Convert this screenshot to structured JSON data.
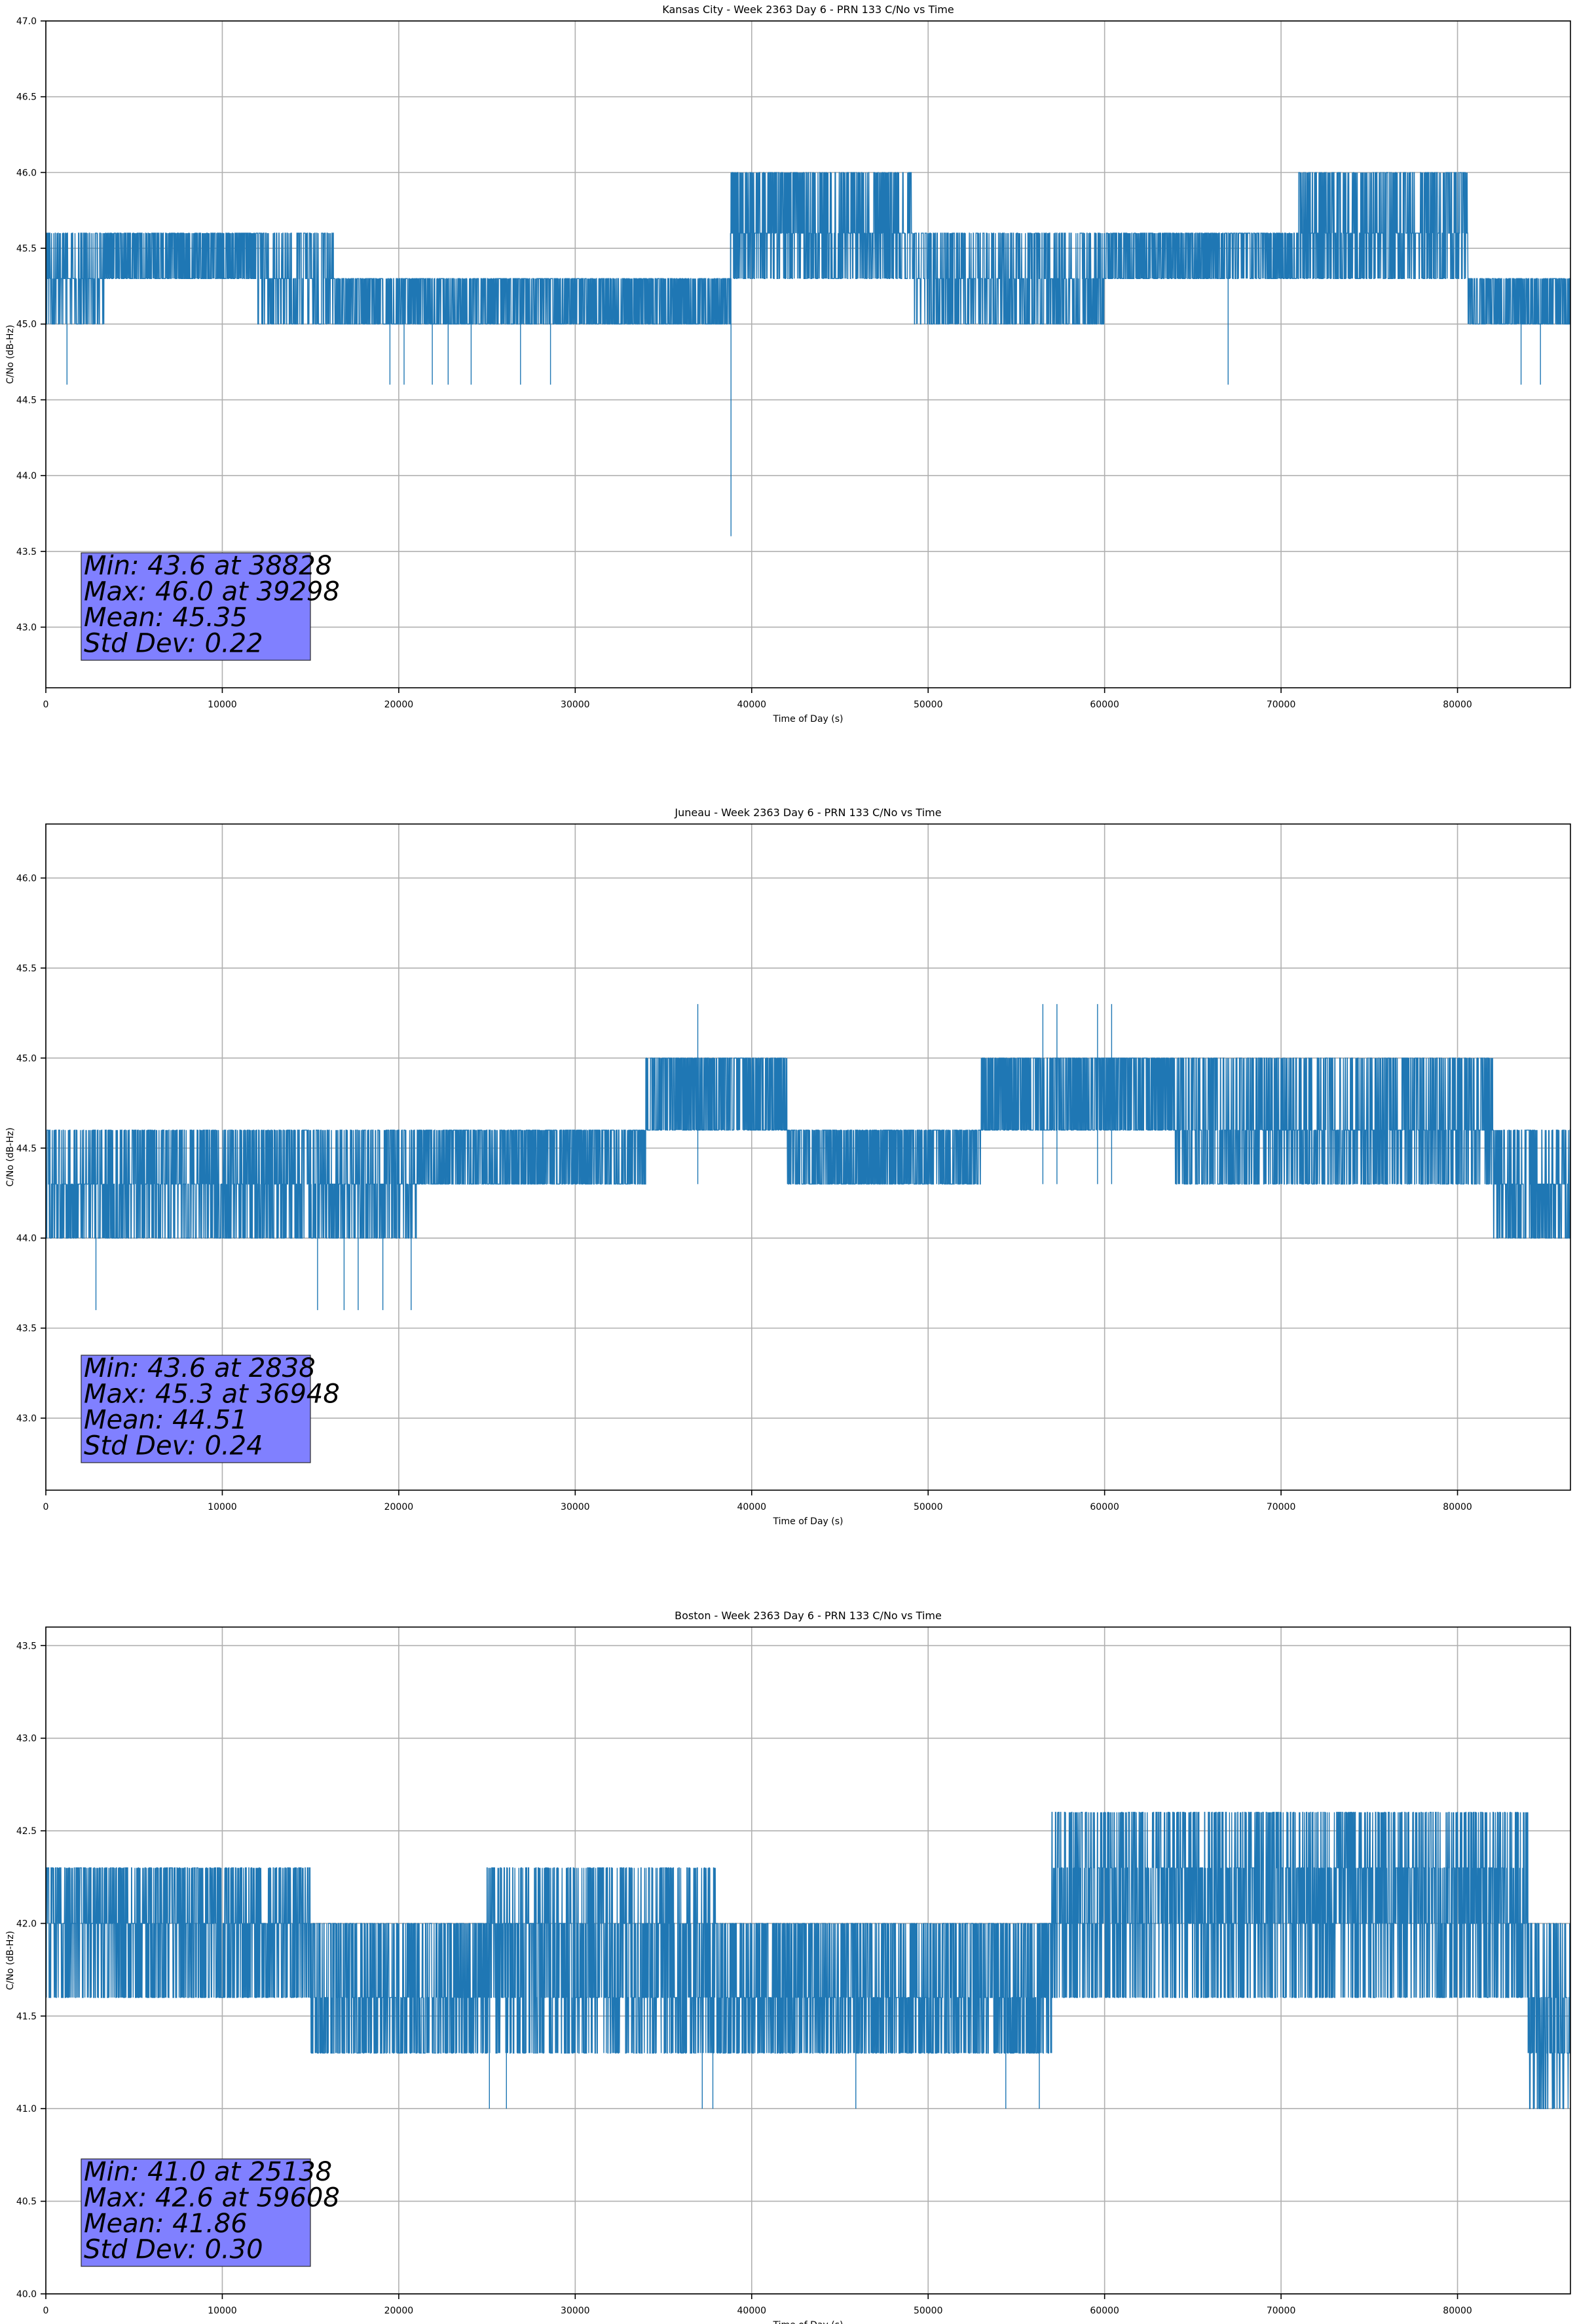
{
  "figure": {
    "panel_count": 3
  },
  "colors": {
    "line": "#1f77b4",
    "grid": "#b0b0b0",
    "stats_box": "#8080ff",
    "stats_box_edge": "#2a2a2a",
    "axes": "#000000"
  },
  "chart_data": [
    {
      "type": "line",
      "title": "Kansas City - Week 2363 Day 6 - PRN 133 C/No vs Time",
      "xlabel": "Time of Day (s)",
      "ylabel": "C/No (dB-Hz)",
      "xlim": [
        0,
        86400
      ],
      "ylim": [
        42.6,
        47.0
      ],
      "xticks": [
        0,
        10000,
        20000,
        30000,
        40000,
        50000,
        60000,
        70000,
        80000
      ],
      "yticks": [
        43.0,
        43.5,
        44.0,
        44.5,
        45.0,
        45.5,
        46.0,
        46.5,
        47.0
      ],
      "grid": true,
      "base_level": 45.3,
      "segments": [
        {
          "x": [
            0,
            3300
          ],
          "levels": [
            45.0,
            45.3,
            45.6
          ],
          "density": 0.7
        },
        {
          "x": [
            3300,
            12000
          ],
          "levels": [
            45.3,
            45.6
          ],
          "density": 0.9
        },
        {
          "x": [
            12000,
            16300
          ],
          "levels": [
            45.0,
            45.3,
            45.6
          ],
          "density": 0.6
        },
        {
          "x": [
            16300,
            38800
          ],
          "levels": [
            45.0,
            45.3
          ],
          "density": 0.9
        },
        {
          "x": [
            38800,
            49000
          ],
          "levels": [
            45.3,
            45.6,
            46.0
          ],
          "density": 0.9
        },
        {
          "x": [
            49000,
            60000
          ],
          "levels": [
            45.0,
            45.3,
            45.6
          ],
          "density": 0.7
        },
        {
          "x": [
            60000,
            71000
          ],
          "levels": [
            45.3,
            45.6
          ],
          "density": 0.9
        },
        {
          "x": [
            71000,
            80600
          ],
          "levels": [
            45.3,
            45.6,
            46.0
          ],
          "density": 0.8
        },
        {
          "x": [
            80600,
            86400
          ],
          "levels": [
            45.0,
            45.3
          ],
          "density": 0.9
        }
      ],
      "dips": [
        {
          "x": 1200,
          "y": 44.6
        },
        {
          "x": 19500,
          "y": 44.6
        },
        {
          "x": 20300,
          "y": 44.6
        },
        {
          "x": 21900,
          "y": 44.6
        },
        {
          "x": 22800,
          "y": 44.6
        },
        {
          "x": 24100,
          "y": 44.6
        },
        {
          "x": 26900,
          "y": 44.6
        },
        {
          "x": 28600,
          "y": 44.6
        },
        {
          "x": 38828,
          "y": 43.6
        },
        {
          "x": 67000,
          "y": 44.6
        },
        {
          "x": 83600,
          "y": 44.6
        },
        {
          "x": 84700,
          "y": 44.6
        }
      ],
      "stats": [
        "Min: 43.6 at 38828",
        "Max: 46.0 at 39298",
        "Mean: 45.35",
        "Std Dev: 0.22"
      ]
    },
    {
      "type": "line",
      "title": "Juneau - Week 2363 Day 6 - PRN 133 C/No vs Time",
      "xlabel": "Time of Day (s)",
      "ylabel": "C/No (dB-Hz)",
      "xlim": [
        0,
        86400
      ],
      "ylim": [
        42.6,
        46.3
      ],
      "xticks": [
        0,
        10000,
        20000,
        30000,
        40000,
        50000,
        60000,
        70000,
        80000
      ],
      "yticks": [
        43.0,
        43.5,
        44.0,
        44.5,
        45.0,
        45.5,
        46.0
      ],
      "grid": true,
      "base_level": 44.3,
      "segments": [
        {
          "x": [
            0,
            16500
          ],
          "levels": [
            44.0,
            44.3,
            44.6
          ],
          "density": 0.8
        },
        {
          "x": [
            16500,
            21000
          ],
          "levels": [
            44.0,
            44.3,
            44.6
          ],
          "density": 0.8
        },
        {
          "x": [
            21000,
            34000
          ],
          "levels": [
            44.3,
            44.6
          ],
          "density": 0.9
        },
        {
          "x": [
            34000,
            42000
          ],
          "levels": [
            44.6,
            45.0
          ],
          "density": 0.9
        },
        {
          "x": [
            42000,
            53000
          ],
          "levels": [
            44.3,
            44.6
          ],
          "density": 0.9
        },
        {
          "x": [
            53000,
            64000
          ],
          "levels": [
            44.6,
            45.0
          ],
          "density": 0.9
        },
        {
          "x": [
            64000,
            82000
          ],
          "levels": [
            44.3,
            44.6,
            45.0
          ],
          "density": 0.8
        },
        {
          "x": [
            82000,
            86400
          ],
          "levels": [
            44.0,
            44.3,
            44.6
          ],
          "density": 0.8
        }
      ],
      "dips": [
        {
          "x": 2838,
          "y": 43.6
        },
        {
          "x": 15400,
          "y": 43.6
        },
        {
          "x": 16900,
          "y": 43.6
        },
        {
          "x": 17700,
          "y": 43.6
        },
        {
          "x": 19100,
          "y": 43.6
        },
        {
          "x": 20700,
          "y": 43.6
        },
        {
          "x": 36948,
          "y": 45.3
        },
        {
          "x": 56500,
          "y": 45.3
        },
        {
          "x": 57300,
          "y": 45.3
        },
        {
          "x": 59600,
          "y": 45.3
        },
        {
          "x": 60400,
          "y": 45.3
        }
      ],
      "stats": [
        "Min: 43.6 at 2838",
        "Max: 45.3 at 36948",
        "Mean: 44.51",
        "Std Dev: 0.24"
      ]
    },
    {
      "type": "line",
      "title": "Boston - Week 2363 Day 6 - PRN 133 C/No vs Time",
      "xlabel": "Time of Day (s)",
      "ylabel": "C/No (dB-Hz)",
      "xlim": [
        0,
        86400
      ],
      "ylim": [
        40.0,
        43.6
      ],
      "xticks": [
        0,
        10000,
        20000,
        30000,
        40000,
        50000,
        60000,
        70000,
        80000
      ],
      "yticks": [
        40.0,
        40.5,
        41.0,
        41.5,
        42.0,
        42.5,
        43.0,
        43.5
      ],
      "grid": true,
      "base_level": 41.6,
      "segments": [
        {
          "x": [
            0,
            3800
          ],
          "levels": [
            41.6,
            42.0,
            42.3
          ],
          "density": 0.8
        },
        {
          "x": [
            3800,
            15000
          ],
          "levels": [
            41.6,
            42.0,
            42.3
          ],
          "density": 0.9
        },
        {
          "x": [
            15000,
            25000
          ],
          "levels": [
            41.3,
            41.6,
            42.0
          ],
          "density": 0.8
        },
        {
          "x": [
            25000,
            38000
          ],
          "levels": [
            41.3,
            41.6,
            42.0,
            42.3
          ],
          "density": 0.8
        },
        {
          "x": [
            38000,
            57000
          ],
          "levels": [
            41.3,
            41.6,
            42.0
          ],
          "density": 0.9
        },
        {
          "x": [
            57000,
            72000
          ],
          "levels": [
            41.6,
            42.0,
            42.3,
            42.6
          ],
          "density": 0.8
        },
        {
          "x": [
            72000,
            84000
          ],
          "levels": [
            41.6,
            42.0,
            42.3,
            42.6
          ],
          "density": 0.9
        },
        {
          "x": [
            84000,
            86400
          ],
          "levels": [
            41.0,
            41.3,
            41.6,
            42.0
          ],
          "density": 0.8
        }
      ],
      "dips": [
        {
          "x": 25138,
          "y": 41.0
        },
        {
          "x": 26100,
          "y": 41.0
        },
        {
          "x": 37200,
          "y": 41.0
        },
        {
          "x": 37800,
          "y": 41.0
        },
        {
          "x": 45900,
          "y": 41.0
        },
        {
          "x": 54400,
          "y": 41.0
        },
        {
          "x": 56300,
          "y": 41.0
        },
        {
          "x": 59608,
          "y": 42.6
        },
        {
          "x": 85500,
          "y": 41.0
        },
        {
          "x": 86000,
          "y": 41.0
        }
      ],
      "stats": [
        "Min: 41.0 at 25138",
        "Max: 42.6 at 59608",
        "Mean: 41.86",
        "Std Dev: 0.30"
      ]
    }
  ]
}
